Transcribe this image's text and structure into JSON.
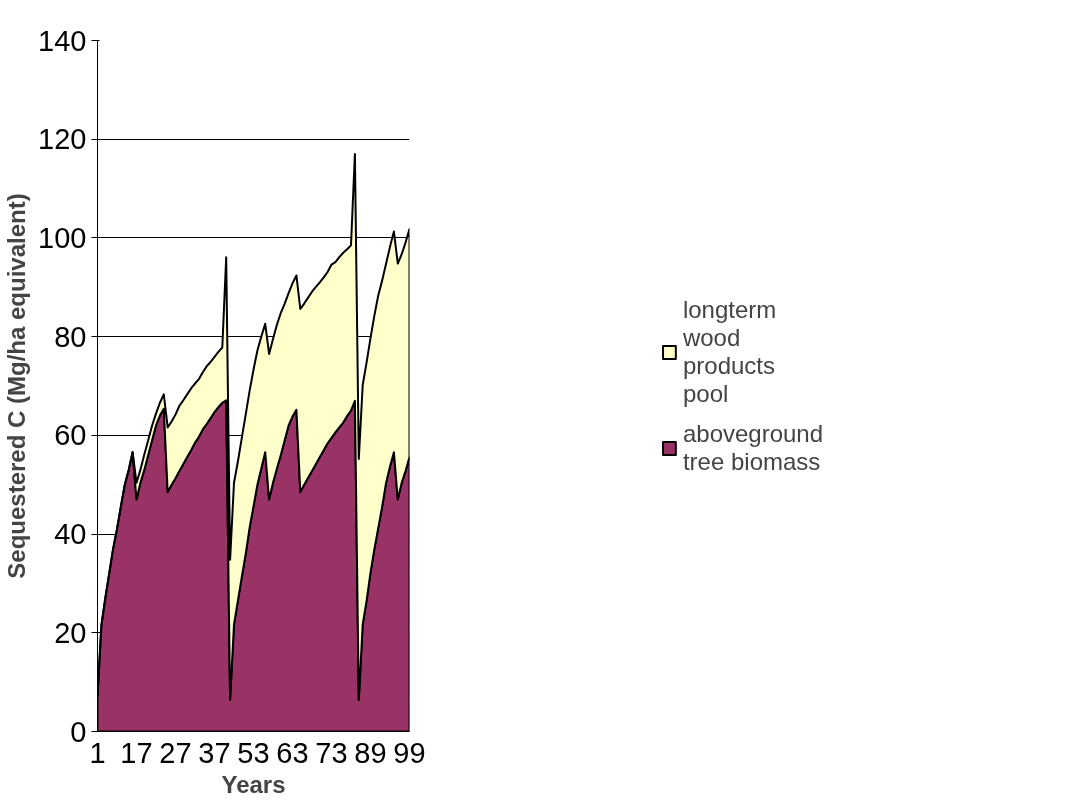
{
  "chart_data": {
    "type": "area",
    "stacked": true,
    "xlabel": "Years",
    "ylabel": "Sequestered C (Mg/ha equivalent)",
    "categories": [
      "1",
      null,
      null,
      null,
      null,
      null,
      null,
      null,
      null,
      null,
      "17",
      null,
      null,
      null,
      null,
      null,
      null,
      null,
      null,
      null,
      "27",
      null,
      null,
      null,
      null,
      null,
      null,
      null,
      null,
      null,
      "37",
      null,
      null,
      null,
      null,
      null,
      null,
      null,
      null,
      null,
      "53",
      null,
      null,
      null,
      null,
      null,
      null,
      null,
      null,
      null,
      "63",
      null,
      null,
      null,
      null,
      null,
      null,
      null,
      null,
      null,
      "73",
      null,
      null,
      null,
      null,
      null,
      null,
      null,
      null,
      null,
      "89",
      null,
      null,
      null,
      null,
      null,
      null,
      null,
      null,
      null,
      "99"
    ],
    "series": [
      {
        "name": "aboveground tree biomass",
        "color": "#993366",
        "values": [
          7,
          21.5,
          27,
          32,
          37,
          41,
          45.6,
          50,
          53,
          56.6,
          47,
          50.4,
          53,
          56,
          59,
          62,
          64,
          65.4,
          48.5,
          50,
          51.3,
          52.8,
          54.2,
          55.6,
          57,
          58.5,
          59.7,
          61.2,
          62.3,
          63.5,
          64.7,
          65.7,
          66.6,
          67.1,
          6.4,
          21.7,
          26.5,
          31.3,
          36,
          41.3,
          45.6,
          50,
          53.3,
          56.6,
          47,
          50.4,
          53.3,
          56,
          59,
          62,
          63.8,
          65.2,
          48.5,
          50,
          51.4,
          52.8,
          54.2,
          55.6,
          57,
          58.4,
          59.5,
          60.6,
          61.6,
          62.6,
          63.9,
          65,
          67,
          6.4,
          21.7,
          26.5,
          32.2,
          37,
          41.3,
          45.6,
          50.4,
          53.7,
          56.6,
          47,
          50.4,
          52.8,
          55.6
        ]
      },
      {
        "name": "longterm wood products pool",
        "color": "#ffffcc",
        "values": [
          0,
          0,
          0,
          0,
          0,
          0,
          0,
          0,
          0,
          0,
          3.4,
          2.6,
          3.1,
          3,
          3,
          2.4,
          2.6,
          2.9,
          13.1,
          12.8,
          12.9,
          13.2,
          12.9,
          12.7,
          12.5,
          12,
          11.7,
          11.6,
          11.7,
          11.4,
          11.2,
          11.2,
          11.2,
          29,
          28.4,
          28.7,
          28.2,
          28.2,
          28.2,
          27.7,
          27.7,
          27.2,
          26.7,
          26,
          29.5,
          29.1,
          29.1,
          28.8,
          27.7,
          26.8,
          27,
          27.2,
          37.1,
          36.7,
          36.5,
          36.3,
          35.9,
          35.4,
          35,
          34.7,
          35.1,
          34.5,
          34.5,
          34.4,
          33.8,
          33.5,
          50,
          48.8,
          48.5,
          48.3,
          47.5,
          47.3,
          47.1,
          45.8,
          44.4,
          44.5,
          44.7,
          47.8,
          46.3,
          46.3,
          46.2
        ]
      }
    ],
    "ylim": [
      0,
      140
    ],
    "yticks": [
      0,
      20,
      40,
      60,
      80,
      100,
      120,
      140
    ],
    "grid": "y",
    "legend": "right"
  }
}
